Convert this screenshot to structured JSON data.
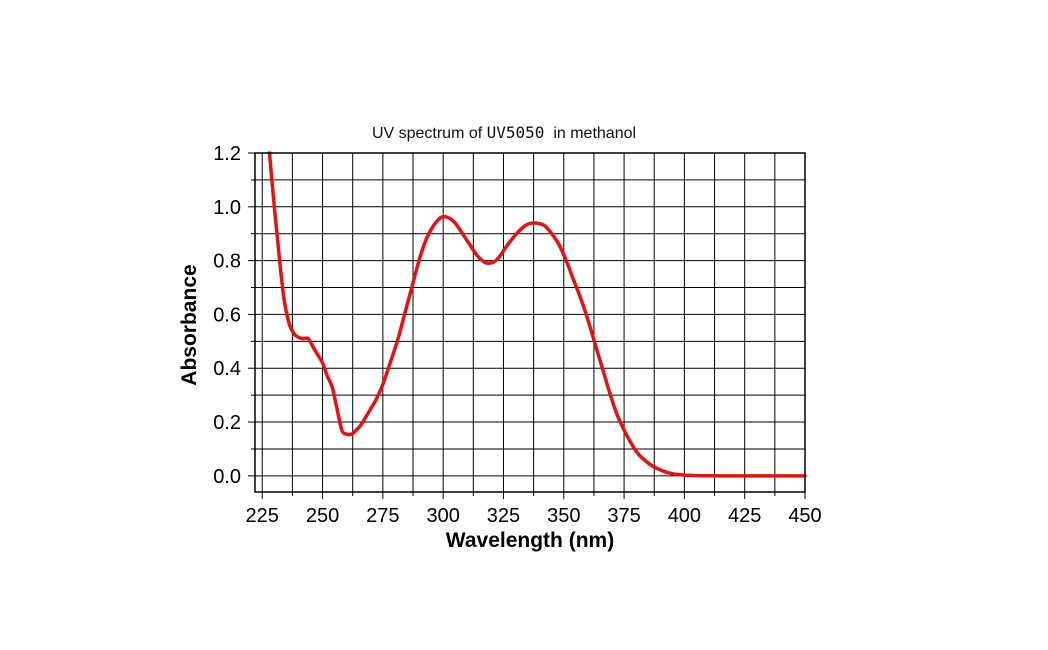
{
  "chart_data": {
    "type": "line",
    "title_parts": [
      "UV spectrum of ",
      "UV5050",
      "  in methanol"
    ],
    "xlabel": "Wavelength (nm)",
    "ylabel": "Absorbance",
    "xlim": [
      222,
      450
    ],
    "ylim": [
      -0.06,
      1.2
    ],
    "x_ticks": [
      225,
      250,
      275,
      300,
      325,
      350,
      375,
      400,
      425,
      450
    ],
    "y_ticks": [
      0.0,
      0.2,
      0.4,
      0.6,
      0.8,
      1.0,
      1.2
    ],
    "x_tick_labels": [
      "225",
      "250",
      "275",
      "300",
      "325",
      "350",
      "375",
      "400",
      "425",
      "450"
    ],
    "y_tick_labels": [
      "0.0",
      "0.2",
      "0.4",
      "0.6",
      "0.8",
      "1.0",
      "1.2"
    ],
    "grid": true,
    "series": [
      {
        "color": "#e81010",
        "x": [
          228,
          230,
          232,
          234,
          236,
          238,
          240,
          242,
          244,
          246,
          248,
          250,
          252,
          254,
          256,
          258,
          260,
          262,
          264,
          266,
          268,
          270,
          272,
          275,
          278,
          281,
          284,
          287,
          290,
          293,
          296,
          299,
          301,
          303,
          305,
          308,
          311,
          314,
          317,
          319,
          321,
          323,
          326,
          329,
          332,
          335,
          338,
          340,
          342,
          345,
          348,
          351,
          354,
          357,
          360,
          363,
          366,
          369,
          372,
          375,
          378,
          381,
          384,
          387,
          390,
          393,
          396,
          400,
          405,
          410,
          420,
          430,
          440,
          450
        ],
        "y": [
          1.2,
          1.0,
          0.82,
          0.66,
          0.57,
          0.53,
          0.515,
          0.51,
          0.51,
          0.48,
          0.45,
          0.42,
          0.37,
          0.33,
          0.25,
          0.17,
          0.155,
          0.155,
          0.17,
          0.19,
          0.22,
          0.25,
          0.28,
          0.34,
          0.42,
          0.5,
          0.6,
          0.7,
          0.8,
          0.88,
          0.93,
          0.96,
          0.963,
          0.955,
          0.94,
          0.9,
          0.86,
          0.82,
          0.795,
          0.79,
          0.795,
          0.81,
          0.85,
          0.885,
          0.915,
          0.935,
          0.94,
          0.937,
          0.93,
          0.9,
          0.86,
          0.8,
          0.73,
          0.66,
          0.58,
          0.49,
          0.4,
          0.31,
          0.23,
          0.17,
          0.12,
          0.08,
          0.055,
          0.035,
          0.022,
          0.012,
          0.006,
          0.003,
          0.001,
          0.0005,
          0.0,
          0.0,
          0.0,
          0.0
        ]
      }
    ]
  }
}
